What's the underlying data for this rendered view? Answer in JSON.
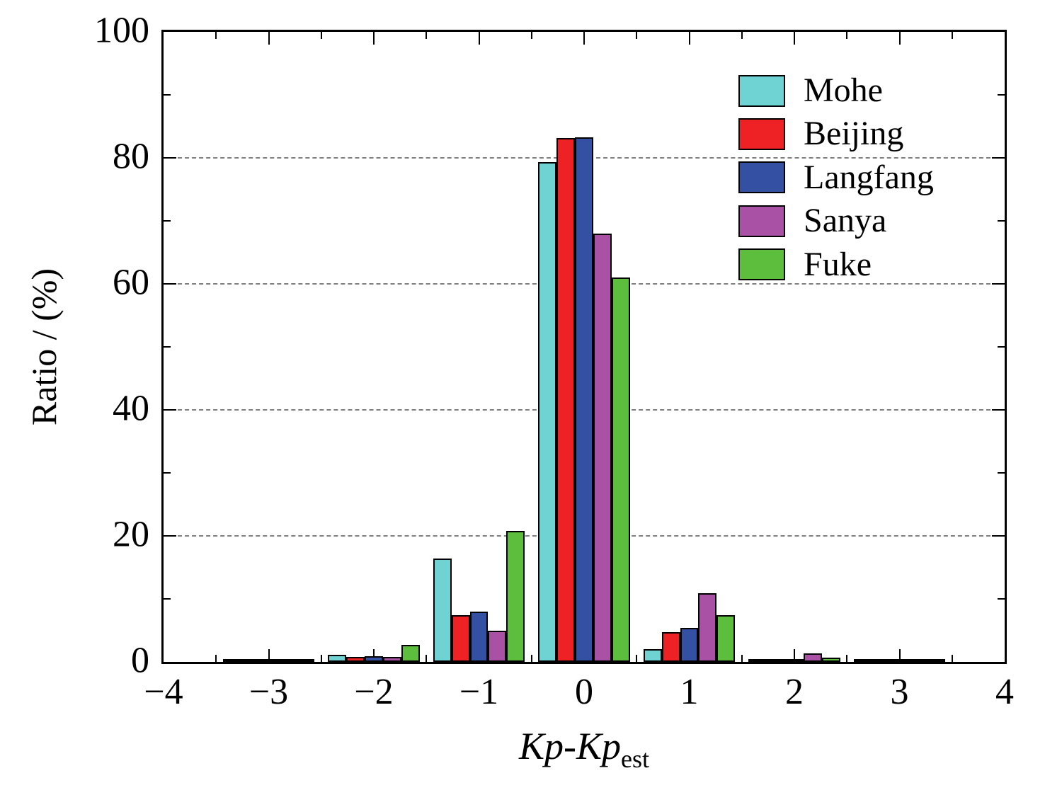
{
  "chart_data": {
    "type": "bar",
    "title": "",
    "xlabel": "Kp-Kp_est",
    "xlabel_main": "Kp-Kp",
    "xlabel_sub": "est",
    "ylabel": "Ratio / (%)",
    "xlim": [
      -4,
      4
    ],
    "ylim": [
      0,
      100
    ],
    "xticks": [
      -4,
      -3,
      -2,
      -1,
      0,
      1,
      2,
      3,
      4
    ],
    "xtick_labels": [
      "−4",
      "−3",
      "−2",
      "−1",
      "0",
      "1",
      "2",
      "3",
      "4"
    ],
    "xticks_minor": [
      -3.5,
      -2.5,
      -1.5,
      -0.5,
      0.5,
      1.5,
      2.5,
      3.5
    ],
    "yticks": [
      0,
      20,
      40,
      60,
      80,
      100
    ],
    "ytick_labels": [
      "0",
      "20",
      "40",
      "60",
      "80",
      "100"
    ],
    "yticks_minor": [
      10,
      30,
      50,
      70,
      90
    ],
    "grid_y": [
      20,
      40,
      60,
      80
    ],
    "grid_style": "dashed",
    "legend_position": "top-right",
    "bar_width_units": 0.175,
    "x": [
      -3,
      -2,
      -1,
      0,
      1,
      2,
      3
    ],
    "series": [
      {
        "name": "Mohe",
        "color": "#6fd3d3",
        "values": [
          0.1,
          1.1,
          16.4,
          79.3,
          2.0,
          0.2,
          0.1
        ]
      },
      {
        "name": "Beijing",
        "color": "#ee2224",
        "values": [
          0.1,
          0.8,
          7.4,
          83.2,
          4.7,
          0.3,
          0.1
        ]
      },
      {
        "name": "Langfang",
        "color": "#3450a2",
        "values": [
          0.1,
          0.9,
          8.0,
          83.3,
          5.4,
          0.4,
          0.1
        ]
      },
      {
        "name": "Sanya",
        "color": "#a952a5",
        "values": [
          0.1,
          0.8,
          4.9,
          68.0,
          10.9,
          1.4,
          0.1
        ]
      },
      {
        "name": "Fuke",
        "color": "#5cbe3c",
        "values": [
          0.1,
          2.7,
          20.8,
          61.0,
          7.4,
          0.7,
          0.1
        ]
      }
    ]
  }
}
